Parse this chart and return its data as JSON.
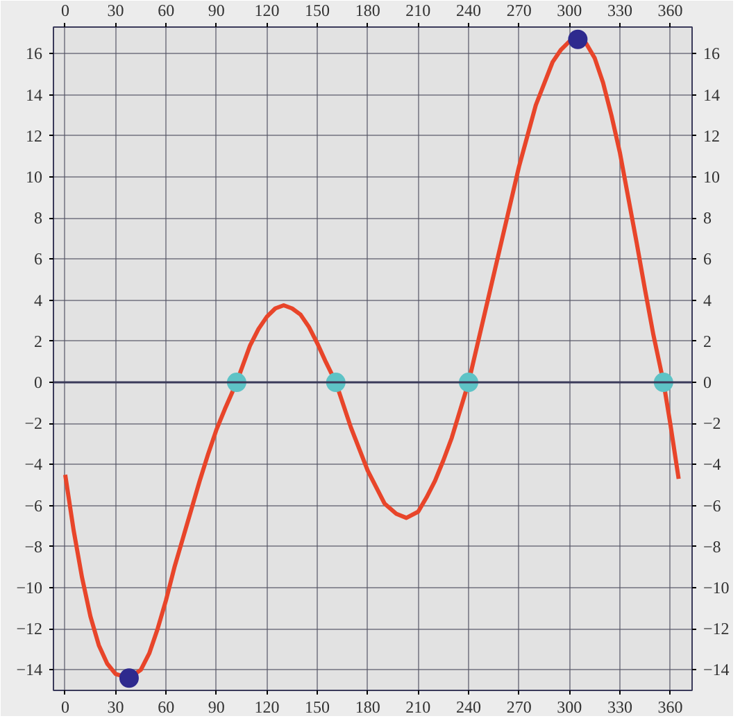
{
  "chart_data": {
    "type": "line",
    "xlim": [
      -7,
      373
    ],
    "ylim": [
      -15,
      17.3
    ],
    "xticks": [
      0,
      30,
      60,
      90,
      120,
      150,
      180,
      210,
      240,
      270,
      300,
      330,
      360
    ],
    "x2lim": [
      -7,
      373
    ],
    "x2ticks": [
      0,
      30,
      60,
      90,
      120,
      150,
      180,
      210,
      240,
      270,
      300,
      330,
      360
    ],
    "yticks": [
      -14,
      -12,
      -10,
      -8,
      -6,
      -4,
      -2,
      0,
      2,
      4,
      6,
      8,
      10,
      12,
      14,
      16
    ],
    "y2lim": [
      -15,
      17.3
    ],
    "y2ticks": [
      -14,
      -12,
      -10,
      -8,
      -6,
      -4,
      -2,
      0,
      2,
      4,
      6,
      8,
      10,
      12,
      14,
      16
    ],
    "grid": true,
    "line_style": "solid",
    "ref_lines": [
      {
        "axis": "y",
        "value": 0,
        "color": "#3a3a5a"
      }
    ],
    "series": [
      {
        "color": "#e8452a",
        "x": [
          0,
          5,
          10,
          15,
          20,
          25,
          30,
          38,
          45,
          50,
          55,
          60,
          65,
          70,
          75,
          80,
          85,
          90,
          95,
          102,
          110,
          115,
          120,
          125,
          130,
          135,
          140,
          145,
          150,
          155,
          161,
          170,
          180,
          190,
          197,
          203,
          210,
          215,
          220,
          225,
          230,
          240,
          250,
          260,
          270,
          280,
          290,
          295,
          300,
          305,
          310,
          315,
          320,
          325,
          330,
          335,
          340,
          345,
          350,
          356,
          360,
          365
        ],
        "values": [
          -4.5,
          -7.2,
          -9.5,
          -11.4,
          -12.8,
          -13.7,
          -14.2,
          -14.4,
          -14,
          -13.2,
          -12,
          -10.6,
          -9,
          -7.6,
          -6.2,
          -4.8,
          -3.5,
          -2.3,
          -1.3,
          0,
          1.8,
          2.6,
          3.2,
          3.6,
          3.75,
          3.6,
          3.3,
          2.7,
          1.9,
          1,
          0,
          -2.2,
          -4.3,
          -5.9,
          -6.4,
          -6.6,
          -6.3,
          -5.6,
          -4.8,
          -3.8,
          -2.7,
          0,
          3.5,
          7,
          10.5,
          13.5,
          15.6,
          16.2,
          16.6,
          16.7,
          16.5,
          15.8,
          14.6,
          13,
          11.2,
          9,
          6.8,
          4.5,
          2.3,
          0,
          -2,
          -4.7
        ]
      },
      {
        "type": "scatter",
        "marker": "circle",
        "color": "#2e2a8e",
        "x": [
          38,
          305
        ],
        "values": [
          -14.4,
          16.7
        ]
      },
      {
        "type": "scatter",
        "marker": "circle",
        "color": "#5ec3c6",
        "x": [
          102,
          161,
          240,
          356
        ],
        "values": [
          0,
          0,
          0,
          0
        ]
      }
    ]
  }
}
